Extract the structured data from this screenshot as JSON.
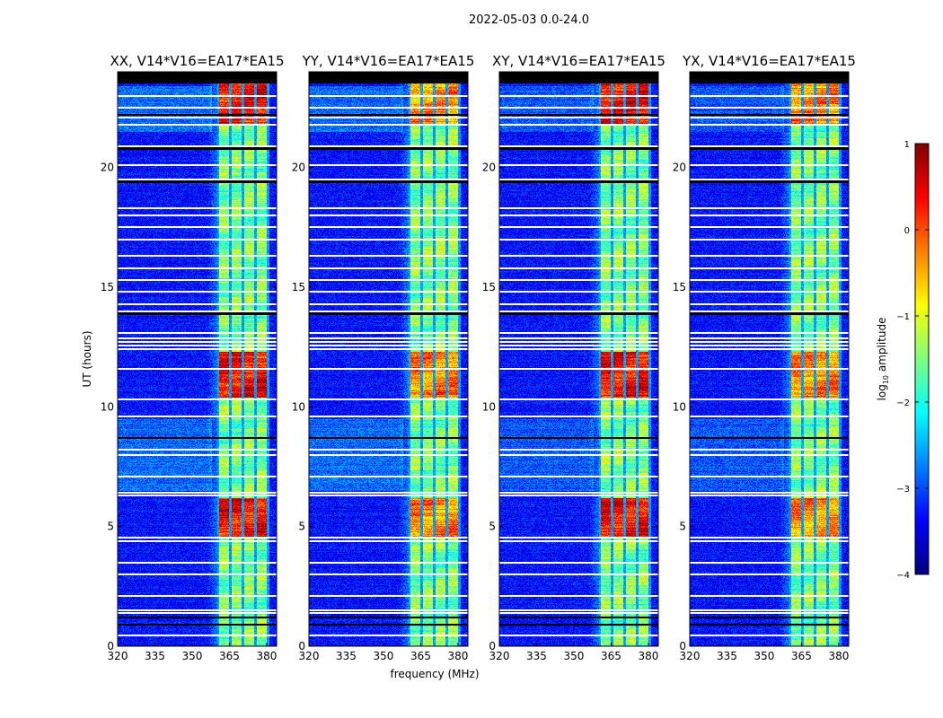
{
  "chart_data": {
    "type": "heatmap",
    "title": "2022-05-03 0.0-24.0",
    "xlabel": "frequency (MHz)",
    "ylabel": "UT (hours)",
    "xlim": [
      320,
      384
    ],
    "ylim": [
      0,
      24
    ],
    "xticks": [
      320,
      335,
      350,
      365,
      380
    ],
    "yticks": [
      0,
      5,
      10,
      15,
      20
    ],
    "panels": [
      {
        "title": "XX, V14*V16=EA17*EA15",
        "type": "parallel",
        "peak_level": 0.35
      },
      {
        "title": "YY, V14*V16=EA17*EA15",
        "type": "parallel",
        "peak_level": -0.3
      },
      {
        "title": "XY, V14*V16=EA17*EA15",
        "type": "cross",
        "peak_level": 0.35
      },
      {
        "title": "YX, V14*V16=EA17*EA15",
        "type": "cross",
        "peak_level": -0.3
      }
    ],
    "background_level": -3.3,
    "bright_subbands_mhz": [
      [
        361,
        365
      ],
      [
        366,
        370
      ],
      [
        371,
        375
      ],
      [
        376,
        380
      ]
    ],
    "bright_band_level": -1.5,
    "high_amplitude_intervals_hours": [
      [
        21.8,
        23.5
      ],
      [
        10.4,
        12.3
      ],
      [
        4.5,
        6.2
      ]
    ],
    "flagged_rows_hours": [
      0.45,
      1.4,
      1.5,
      2.1,
      3.0,
      3.5,
      4.4,
      4.55,
      6.3,
      6.4,
      7.1,
      8.0,
      8.2,
      9.6,
      10.3,
      11.6,
      12.4,
      12.55,
      12.7,
      12.85,
      13.1,
      14.0,
      14.3,
      14.8,
      15.3,
      15.8,
      16.3,
      17.0,
      17.5,
      18.0,
      18.3,
      19.5,
      20.1,
      20.9,
      21.8,
      22.1,
      22.5,
      23.0
    ],
    "zero_rows_hours": [
      0.9,
      1.2,
      8.7,
      13.9,
      19.4,
      20.8,
      22.2
    ],
    "zero_interval_hours": [
      23.5,
      24
    ],
    "colorbar": {
      "label": "log10 amplitude",
      "label_main": "log",
      "label_sub": "10",
      "label_rest": " amplitude",
      "range": [
        -4,
        1
      ],
      "ticks": [
        "1",
        "0",
        "−1",
        "−2",
        "−3",
        "−4"
      ],
      "tick_values": [
        1,
        0,
        -1,
        -2,
        -3,
        -4
      ],
      "colormap": "jet"
    }
  }
}
